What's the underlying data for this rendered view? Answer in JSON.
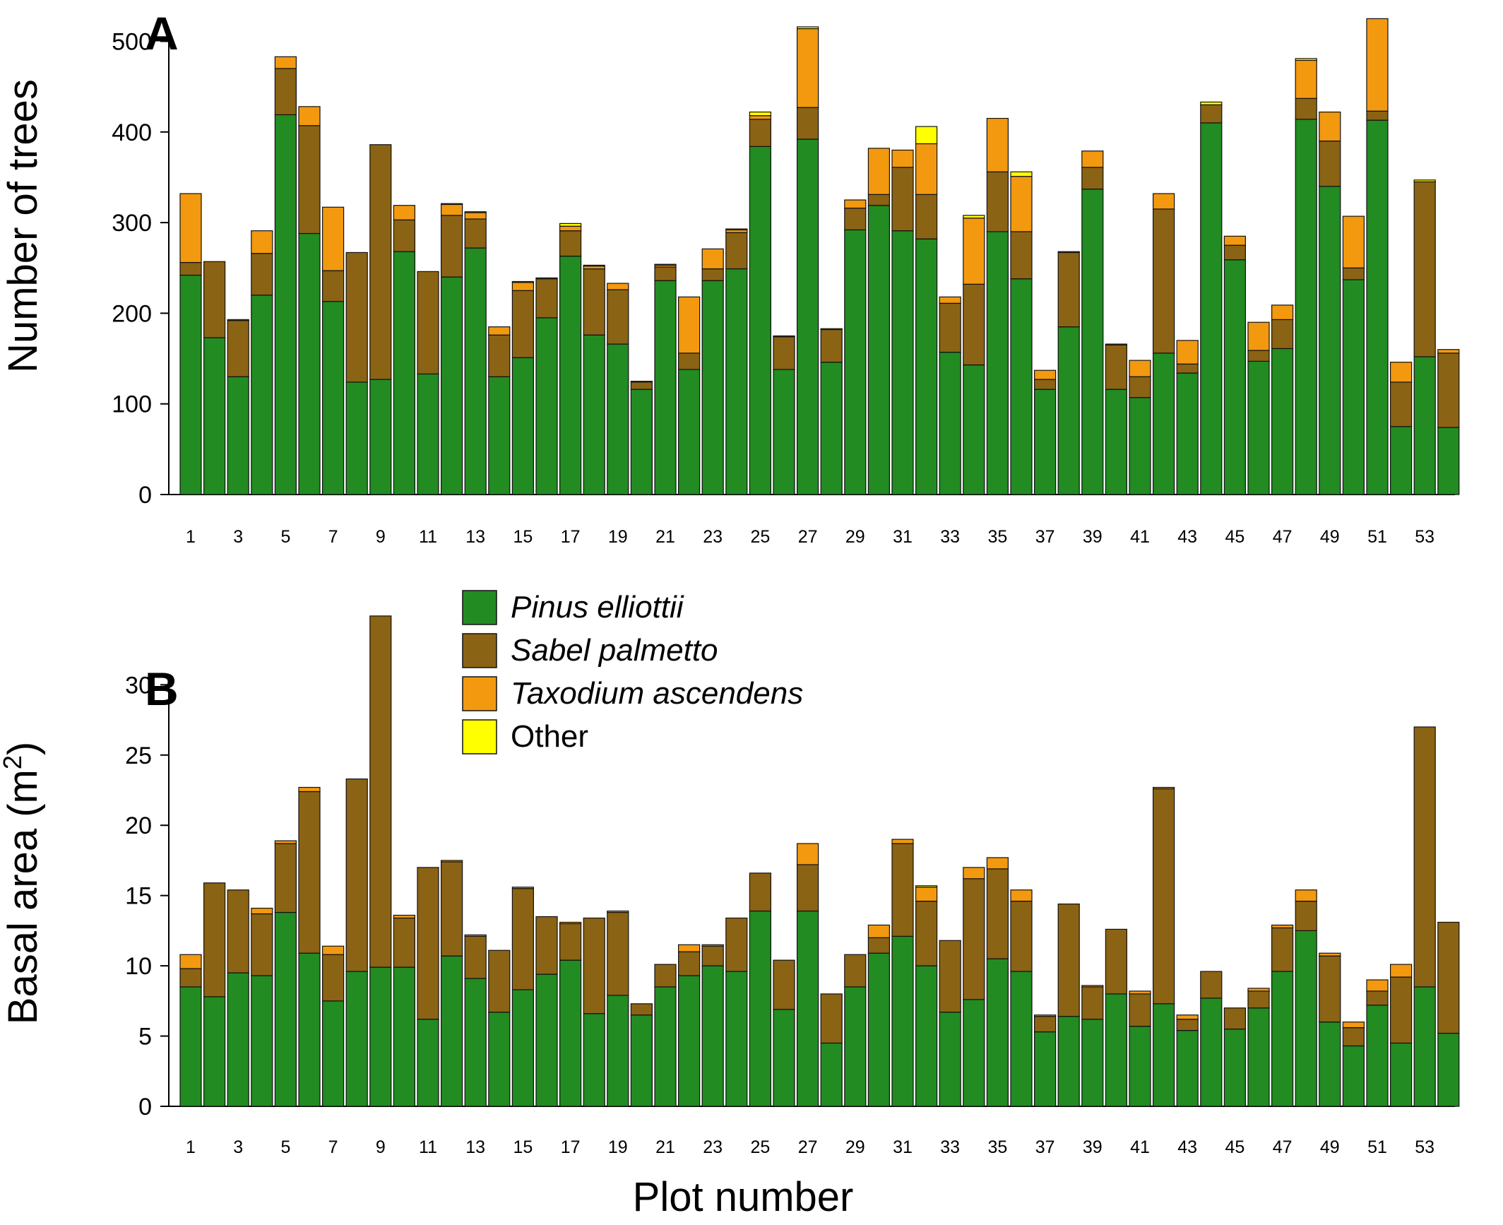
{
  "chart_data": [
    {
      "panel": "A",
      "type": "bar",
      "stacked": true,
      "ylabel": "Number of trees",
      "xlabel": "",
      "ylim": [
        0,
        530
      ],
      "yticks": [
        0,
        100,
        200,
        300,
        400,
        500
      ],
      "x": [
        1,
        2,
        3,
        4,
        5,
        6,
        7,
        8,
        9,
        10,
        11,
        12,
        13,
        14,
        15,
        16,
        17,
        18,
        19,
        20,
        21,
        22,
        23,
        24,
        25,
        26,
        27,
        28,
        29,
        30,
        31,
        32,
        33,
        34,
        35,
        36,
        37,
        38,
        39,
        40,
        41,
        42,
        43,
        44,
        45,
        46,
        47,
        48,
        49,
        50,
        51,
        52,
        53,
        54
      ],
      "xtick_labels": [
        "1",
        "3",
        "5",
        "7",
        "9",
        "11",
        "13",
        "15",
        "17",
        "19",
        "21",
        "23",
        "25",
        "27",
        "29",
        "31",
        "33",
        "35",
        "37",
        "39",
        "41",
        "43",
        "45",
        "47",
        "49",
        "51",
        "53"
      ],
      "series": [
        {
          "name": "Pinus elliottii",
          "color": "#228B22",
          "values": [
            242,
            173,
            130,
            220,
            419,
            288,
            213,
            124,
            127,
            268,
            133,
            240,
            272,
            130,
            151,
            195,
            263,
            176,
            166,
            116,
            236,
            138,
            236,
            249,
            384,
            138,
            392,
            146,
            292,
            319,
            291,
            282,
            157,
            143,
            290,
            238,
            116,
            185,
            337,
            116,
            107,
            156,
            134,
            410,
            259,
            147,
            161,
            414,
            340,
            237,
            413,
            75,
            152,
            74
          ]
        },
        {
          "name": "Sabel palmetto",
          "color": "#8B6314",
          "values": [
            14,
            84,
            62,
            46,
            51,
            119,
            34,
            143,
            259,
            35,
            113,
            68,
            32,
            46,
            74,
            43,
            28,
            73,
            60,
            8,
            15,
            18,
            13,
            40,
            30,
            36,
            35,
            36,
            24,
            12,
            70,
            49,
            54,
            89,
            66,
            52,
            11,
            82,
            24,
            49,
            23,
            159,
            10,
            20,
            16,
            12,
            32,
            23,
            50,
            13,
            10,
            49,
            193,
            82
          ]
        },
        {
          "name": "Taxodium ascendens",
          "color": "#F2990F",
          "values": [
            76,
            0,
            0,
            25,
            13,
            21,
            70,
            0,
            0,
            16,
            0,
            12,
            7,
            9,
            9,
            0,
            5,
            3,
            7,
            0,
            2,
            62,
            22,
            3,
            4,
            0,
            87,
            0,
            9,
            51,
            19,
            56,
            7,
            73,
            59,
            61,
            10,
            0,
            18,
            0,
            18,
            17,
            26,
            0,
            10,
            31,
            16,
            42,
            32,
            57,
            102,
            22,
            0,
            4
          ]
        },
        {
          "name": "Other",
          "color": "#FFFF00",
          "values": [
            0,
            0,
            1,
            0,
            0,
            0,
            0,
            0,
            0,
            0,
            0,
            1,
            1,
            0,
            1,
            1,
            3,
            1,
            0,
            1,
            1,
            0,
            0,
            1,
            4,
            1,
            2,
            1,
            0,
            0,
            0,
            19,
            0,
            3,
            0,
            5,
            0,
            1,
            0,
            1,
            0,
            0,
            0,
            3,
            0,
            0,
            0,
            2,
            0,
            0,
            0,
            0,
            2,
            0
          ]
        }
      ]
    },
    {
      "panel": "B",
      "type": "bar",
      "stacked": true,
      "ylabel": "Basal area (m²)",
      "xlabel": "Plot number",
      "ylim": [
        0,
        36
      ],
      "yticks": [
        0,
        5,
        10,
        15,
        20,
        25,
        30
      ],
      "x": [
        1,
        2,
        3,
        4,
        5,
        6,
        7,
        8,
        9,
        10,
        11,
        12,
        13,
        14,
        15,
        16,
        17,
        18,
        19,
        20,
        21,
        22,
        23,
        24,
        25,
        26,
        27,
        28,
        29,
        30,
        31,
        32,
        33,
        34,
        35,
        36,
        37,
        38,
        39,
        40,
        41,
        42,
        43,
        44,
        45,
        46,
        47,
        48,
        49,
        50,
        51,
        52,
        53,
        54
      ],
      "xtick_labels": [
        "1",
        "3",
        "5",
        "7",
        "9",
        "11",
        "13",
        "15",
        "17",
        "19",
        "21",
        "23",
        "25",
        "27",
        "29",
        "31",
        "33",
        "35",
        "37",
        "39",
        "41",
        "43",
        "45",
        "47",
        "49",
        "51",
        "53"
      ],
      "series": [
        {
          "name": "Pinus elliottii",
          "color": "#228B22",
          "values": [
            8.5,
            7.8,
            9.5,
            9.3,
            13.8,
            10.9,
            7.5,
            9.6,
            9.9,
            9.9,
            6.2,
            10.7,
            9.1,
            6.7,
            8.3,
            9.4,
            10.4,
            6.6,
            7.9,
            6.5,
            8.5,
            9.3,
            10.0,
            9.6,
            13.9,
            6.9,
            13.9,
            4.5,
            8.5,
            10.9,
            12.1,
            10.0,
            6.7,
            7.6,
            10.5,
            9.6,
            5.3,
            6.4,
            6.2,
            8.0,
            5.7,
            7.3,
            5.4,
            7.7,
            5.5,
            7.0,
            9.6,
            12.5,
            6.0,
            4.3,
            7.2,
            4.5,
            8.5,
            5.2
          ]
        },
        {
          "name": "Sabel palmetto",
          "color": "#8B6314",
          "values": [
            1.3,
            8.1,
            5.9,
            4.4,
            4.9,
            11.5,
            3.3,
            13.7,
            25.0,
            3.5,
            10.8,
            6.7,
            3.0,
            4.4,
            7.2,
            4.1,
            2.6,
            6.8,
            5.9,
            0.8,
            1.6,
            1.7,
            1.4,
            3.8,
            2.7,
            3.5,
            3.3,
            3.5,
            2.3,
            1.1,
            6.6,
            4.6,
            5.1,
            8.6,
            6.4,
            5.0,
            1.1,
            8.0,
            2.3,
            4.6,
            2.3,
            15.3,
            0.8,
            1.9,
            1.5,
            1.2,
            3.1,
            2.1,
            4.7,
            1.3,
            1.0,
            4.7,
            18.5,
            7.9
          ]
        },
        {
          "name": "Taxodium ascendens",
          "color": "#F2990F",
          "values": [
            1.0,
            0,
            0,
            0.4,
            0.2,
            0.3,
            0.6,
            0,
            0,
            0.2,
            0,
            0.1,
            0.1,
            0,
            0.1,
            0,
            0.1,
            0,
            0.1,
            0,
            0,
            0.5,
            0.1,
            0,
            0,
            0,
            1.5,
            0,
            0,
            0.9,
            0.3,
            1.0,
            0,
            0.8,
            0.8,
            0.8,
            0.1,
            0,
            0.1,
            0,
            0.2,
            0.1,
            0.3,
            0,
            0,
            0.2,
            0.2,
            0.8,
            0.2,
            0.4,
            0.8,
            0.9,
            0,
            0
          ]
        },
        {
          "name": "Other",
          "color": "#FFFF00",
          "values": [
            0,
            0,
            0,
            0,
            0,
            0,
            0,
            0,
            0,
            0,
            0,
            0,
            0,
            0,
            0,
            0,
            0,
            0,
            0,
            0,
            0,
            0,
            0,
            0,
            0,
            0,
            0,
            0,
            0,
            0,
            0,
            0.1,
            0,
            0,
            0,
            0,
            0,
            0,
            0,
            0,
            0,
            0,
            0,
            0,
            0,
            0,
            0,
            0,
            0,
            0,
            0,
            0,
            0,
            0
          ]
        }
      ]
    }
  ],
  "legend": [
    {
      "label": "Pinus elliottii",
      "color": "#228B22",
      "italic": true
    },
    {
      "label": "Sabel palmetto",
      "color": "#8B6314",
      "italic": true
    },
    {
      "label": "Taxodium ascendens",
      "color": "#F2990F",
      "italic": true
    },
    {
      "label": "Other",
      "color": "#FFFF00",
      "italic": false
    }
  ]
}
